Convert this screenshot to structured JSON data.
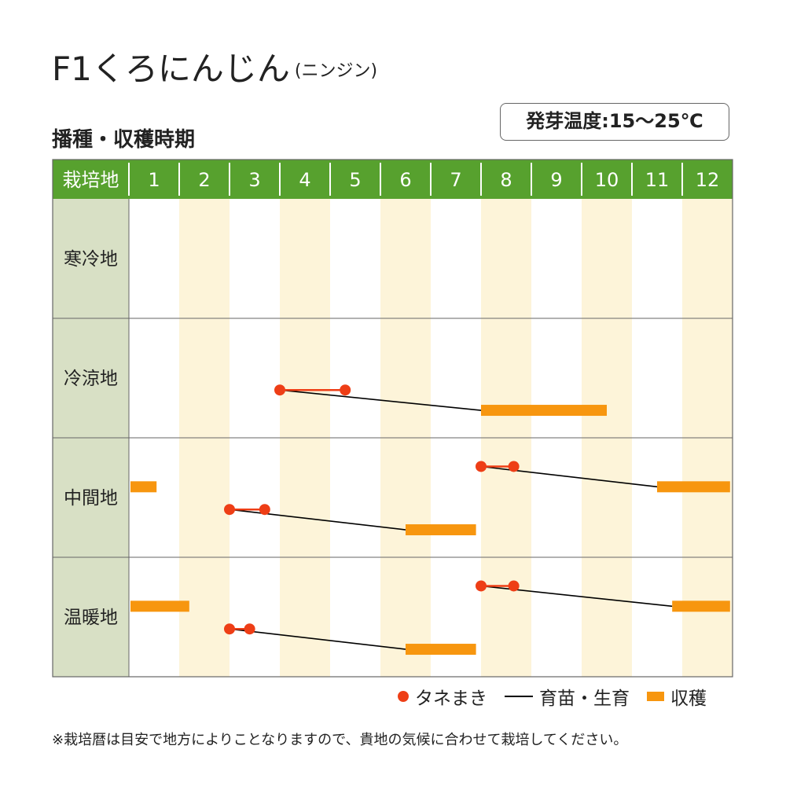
{
  "title": "F1くろにんじん",
  "title_sub": "(ニンジン)",
  "subtitle": "播種・収穫時期",
  "temperature_badge": "発芽温度:15〜25℃",
  "header_label": "栽培地",
  "colors": {
    "header_green": "#57a12e",
    "region_bg": "#d8e0c5",
    "stripe": "#fdf4d9",
    "sowing": "#ee3e16",
    "harvest": "#f7960f",
    "growing": "#000000"
  },
  "chart_data": {
    "type": "gantt",
    "months": [
      "1",
      "2",
      "3",
      "4",
      "5",
      "6",
      "7",
      "8",
      "9",
      "10",
      "11",
      "12"
    ],
    "regions": [
      {
        "name": "寒冷地",
        "schedules": []
      },
      {
        "name": "冷涼地",
        "schedules": [
          {
            "sowing": [
              4.0,
              5.3
            ],
            "harvest": [
              8.0,
              10.5
            ]
          }
        ]
      },
      {
        "name": "中間地",
        "schedules": [
          {
            "sowing": [
              8.0,
              8.65
            ],
            "harvest": [
              11.5,
              12.95
            ]
          },
          {
            "sowing": [
              3.0,
              3.7
            ],
            "harvest": [
              6.5,
              7.9
            ]
          },
          {
            "sowing": null,
            "harvest": [
              1.0,
              1.55
            ]
          }
        ]
      },
      {
        "name": "温暖地",
        "schedules": [
          {
            "sowing": [
              8.0,
              8.65
            ],
            "harvest": [
              11.8,
              12.95
            ]
          },
          {
            "sowing": [
              3.0,
              3.4
            ],
            "harvest": [
              6.5,
              7.9
            ]
          },
          {
            "sowing": null,
            "harvest": [
              1.0,
              2.2
            ]
          }
        ]
      }
    ]
  },
  "legend": {
    "sowing": "タネまき",
    "growing": "育苗・生育",
    "harvest": "収穫"
  },
  "footnote": "※栽培暦は目安で地方によりことなりますので、貴地の気候に合わせて栽培してください。"
}
